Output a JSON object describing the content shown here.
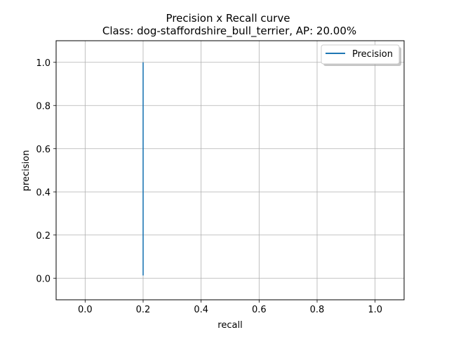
{
  "chart_data": {
    "type": "line",
    "title": "Precision x Recall curve",
    "subtitle": "Class: dog-staffordshire_bull_terrier, AP: 20.00%",
    "xlabel": "recall",
    "ylabel": "precision",
    "xlim": [
      -0.1,
      1.1
    ],
    "ylim": [
      -0.1,
      1.1
    ],
    "x_ticks": [
      0.0,
      0.2,
      0.4,
      0.6,
      0.8,
      1.0
    ],
    "x_tick_labels": [
      "0.0",
      "0.2",
      "0.4",
      "0.6",
      "0.8",
      "1.0"
    ],
    "y_ticks": [
      0.0,
      0.2,
      0.4,
      0.6,
      0.8,
      1.0
    ],
    "y_tick_labels": [
      "0.0",
      "0.2",
      "0.4",
      "0.6",
      "0.8",
      "1.0"
    ],
    "grid": true,
    "legend_position": "top-right",
    "series": [
      {
        "name": "Precision",
        "color": "#1f77b4",
        "x": [
          0.2,
          0.2
        ],
        "y": [
          1.0,
          0.0125
        ]
      }
    ]
  }
}
